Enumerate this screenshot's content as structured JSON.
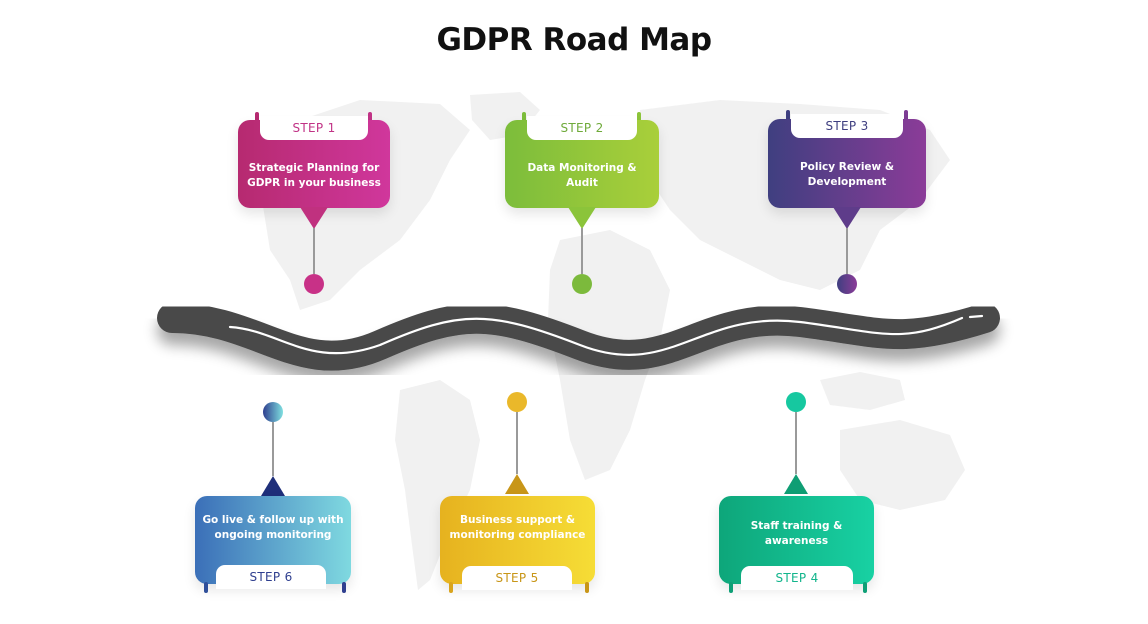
{
  "title": "GDPR Road Map",
  "steps": [
    {
      "label": "STEP 1",
      "text": "Strategic Planning for GDPR in your business",
      "color_from": "#b62a70",
      "color_to": "#d0379c",
      "label_color": "#c13386"
    },
    {
      "label": "STEP 2",
      "text": "Data Monitoring & Audit",
      "color_from": "#7cbd3b",
      "color_to": "#a9cf3a",
      "label_color": "#6faa3a"
    },
    {
      "label": "STEP 3",
      "text": "Policy Review & Development",
      "color_from": "#3f3f80",
      "color_to": "#8b3c98",
      "label_color": "#3f3f80"
    },
    {
      "label": "STEP 4",
      "text": "Staff training & awareness",
      "color_from": "#0ea67a",
      "color_to": "#18d1a3",
      "label_color": "#12b58c"
    },
    {
      "label": "STEP 5",
      "text": "Business support & monitoring compliance",
      "color_from": "#e6b21f",
      "color_to": "#f6dd36",
      "label_color": "#c89618"
    },
    {
      "label": "STEP 6",
      "text": "Go live & follow up with ongoing monitoring",
      "color_from": "#3b6fb8",
      "color_to": "#7fd9e0",
      "label_color": "#2f3f8f"
    }
  ],
  "colors": {
    "road": "#4a4a4a",
    "road_line": "#ffffff",
    "map": "#f0f0f0",
    "stem": "#9a9a9a"
  },
  "icons": [
    "world-map-background",
    "winding-road"
  ]
}
